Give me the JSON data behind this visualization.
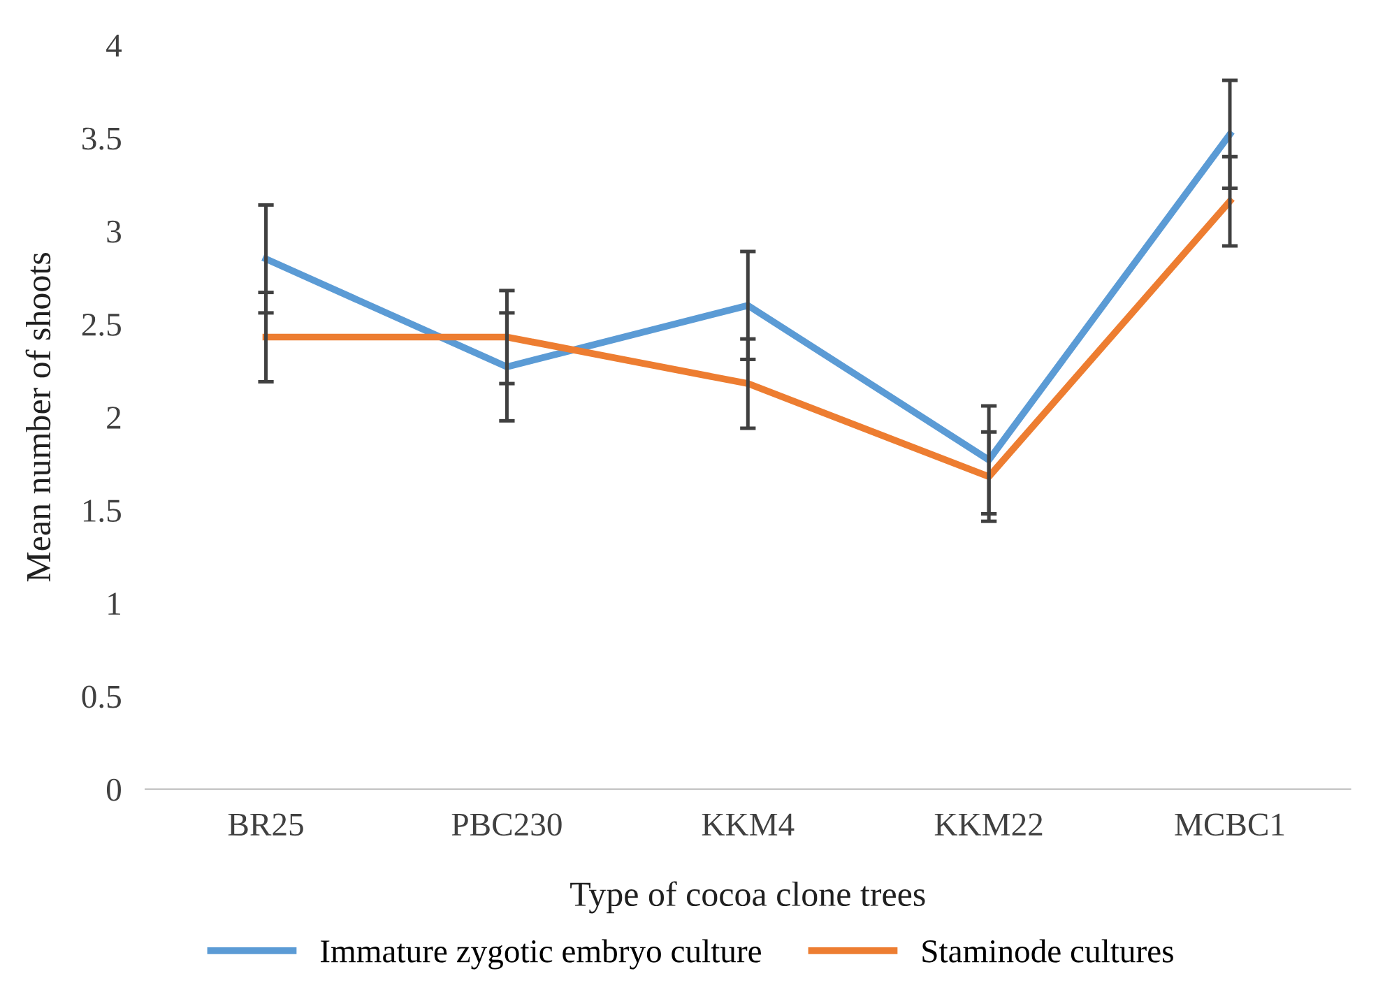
{
  "chart_data": {
    "type": "line",
    "xlabel": "Type of cocoa clone trees",
    "ylabel": "Mean number of shoots",
    "categories": [
      "BR25",
      "PBC230",
      "KKM4",
      "KKM22",
      "MCBC1"
    ],
    "series": [
      {
        "name": "Immature zygotic embryo culture",
        "color": "#5b9bd5",
        "values": [
          2.85,
          2.27,
          2.6,
          1.77,
          3.52
        ],
        "errors": [
          0.29,
          0.29,
          0.29,
          0.29,
          0.29
        ]
      },
      {
        "name": "Staminode cultures",
        "color": "#ed7d31",
        "values": [
          2.43,
          2.43,
          2.18,
          1.68,
          3.16
        ],
        "errors": [
          0.24,
          0.25,
          0.24,
          0.24,
          0.24
        ]
      }
    ],
    "ylim": [
      0,
      4
    ],
    "yticks": [
      0,
      0.5,
      1,
      1.5,
      2,
      2.5,
      3,
      3.5,
      4
    ],
    "grid": false,
    "legend": "bottom",
    "marker": "none",
    "line_style": "solid"
  }
}
